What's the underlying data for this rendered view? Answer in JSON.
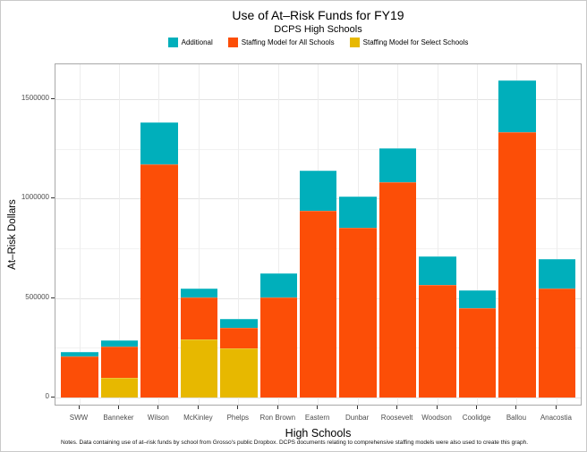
{
  "note": "Notes. Data containing use of at–risk funds by school from Grosso's public Dropbox. DCPS documents relating to comprehensive staffing models were also used to create this graph.",
  "chart_data": {
    "type": "bar",
    "stacked": true,
    "title": "Use of At–Risk Funds for FY19",
    "subtitle": "DCPS High Schools",
    "xlabel": "High Schools",
    "ylabel": "At–Risk Dollars",
    "ylim": [
      0,
      1675000
    ],
    "grid": true,
    "legend_position": "top",
    "legend_labels": [
      "Additional",
      "Staffing Model for All Schools",
      "Staffing Model for Select Schools"
    ],
    "categories": [
      "SWW",
      "Banneker",
      "Wilson",
      "McKinley",
      "Phelps",
      "Ron Brown",
      "Eastern",
      "Dunbar",
      "Roosevelt",
      "Woodson",
      "Coolidge",
      "Ballou",
      "Anacostia"
    ],
    "series": [
      {
        "name": "Staffing Model for Select Schools",
        "color": "#E7B800",
        "values": [
          0,
          100000,
          0,
          291000,
          246000,
          0,
          0,
          0,
          0,
          0,
          0,
          0,
          0
        ]
      },
      {
        "name": "Staffing Model for All Schools",
        "color": "#FC4E07",
        "values": [
          206000,
          158000,
          1170000,
          213000,
          105000,
          504000,
          938000,
          853000,
          1081000,
          564000,
          449000,
          1336000,
          550000
        ]
      },
      {
        "name": "Additional",
        "color": "#00AFBB",
        "values": [
          21000,
          29000,
          211000,
          45000,
          42000,
          120000,
          203000,
          158000,
          172000,
          145000,
          92000,
          259000,
          146000
        ]
      }
    ],
    "totals": [
      227000,
      287000,
      1381000,
      549000,
      393000,
      624000,
      1141000,
      1011000,
      1253000,
      709000,
      541000,
      1595000,
      696000
    ],
    "yticks": [
      {
        "value": 0,
        "label": "0"
      },
      {
        "value": 500000,
        "label": "500000"
      },
      {
        "value": 1000000,
        "label": "1000000"
      },
      {
        "value": 1500000,
        "label": "1500000"
      }
    ],
    "yticks_minor": [
      250000,
      750000,
      1250000
    ]
  }
}
